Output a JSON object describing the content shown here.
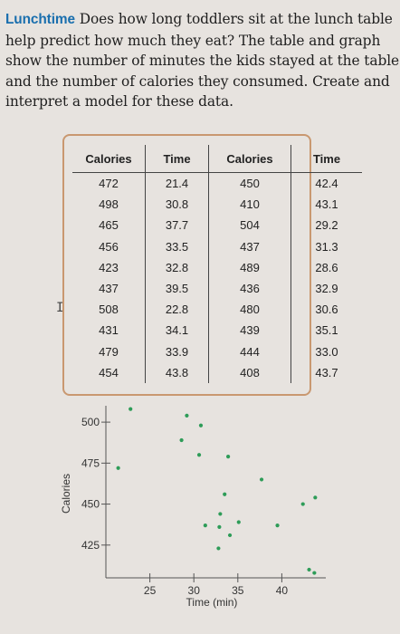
{
  "problem": {
    "keyword": "Lunchtime",
    "text": " Does how long toddlers sit at the lunch table help predict how much they eat? The table and graph show the number of minutes the kids stayed at the table and the number of calories they consumed. Create and interpret a model for these data."
  },
  "table": {
    "headers": [
      "Calories",
      "Time",
      "Calories",
      "Time"
    ],
    "rows": [
      [
        "472",
        "21.4",
        "450",
        "42.4"
      ],
      [
        "498",
        "30.8",
        "410",
        "43.1"
      ],
      [
        "465",
        "37.7",
        "504",
        "29.2"
      ],
      [
        "456",
        "33.5",
        "437",
        "31.3"
      ],
      [
        "423",
        "32.8",
        "489",
        "28.6"
      ],
      [
        "437",
        "39.5",
        "436",
        "32.9"
      ],
      [
        "508",
        "22.8",
        "480",
        "30.6"
      ],
      [
        "431",
        "34.1",
        "439",
        "35.1"
      ],
      [
        "479",
        "33.9",
        "444",
        "33.0"
      ],
      [
        "454",
        "43.8",
        "408",
        "43.7"
      ]
    ]
  },
  "chart_data": {
    "type": "scatter",
    "xlabel": "Time (min)",
    "ylabel": "Calories",
    "x_ticks": [
      "25",
      "30",
      "35",
      "40"
    ],
    "y_ticks": [
      "500",
      "475",
      "450",
      "425"
    ],
    "xlim": [
      20,
      45
    ],
    "ylim": [
      405,
      510
    ],
    "points": [
      {
        "x": 21.4,
        "y": 472
      },
      {
        "x": 30.8,
        "y": 498
      },
      {
        "x": 37.7,
        "y": 465
      },
      {
        "x": 33.5,
        "y": 456
      },
      {
        "x": 32.8,
        "y": 423
      },
      {
        "x": 39.5,
        "y": 437
      },
      {
        "x": 22.8,
        "y": 508
      },
      {
        "x": 34.1,
        "y": 431
      },
      {
        "x": 33.9,
        "y": 479
      },
      {
        "x": 43.8,
        "y": 454
      },
      {
        "x": 42.4,
        "y": 450
      },
      {
        "x": 43.1,
        "y": 410
      },
      {
        "x": 29.2,
        "y": 504
      },
      {
        "x": 31.3,
        "y": 437
      },
      {
        "x": 28.6,
        "y": 489
      },
      {
        "x": 32.9,
        "y": 436
      },
      {
        "x": 30.6,
        "y": 480
      },
      {
        "x": 35.1,
        "y": 439
      },
      {
        "x": 33.0,
        "y": 444
      },
      {
        "x": 43.7,
        "y": 408
      }
    ],
    "marker_color": "#2e9c58"
  }
}
